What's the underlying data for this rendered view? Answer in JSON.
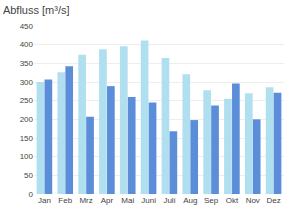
{
  "chart_data": {
    "type": "bar",
    "title": "Abfluss [m³/s]",
    "categories": [
      "Jan",
      "Feb",
      "Mrz",
      "Apr",
      "Mai",
      "Juni",
      "Juli",
      "Aug",
      "Sep",
      "Okt",
      "Nov",
      "Dez"
    ],
    "series": [
      {
        "color": "#b0dff0",
        "values": [
          300,
          326,
          373,
          388,
          396,
          411,
          364,
          321,
          278,
          255,
          270,
          286
        ]
      },
      {
        "color": "#5b8dd9",
        "values": [
          307,
          342,
          207,
          289,
          260,
          245,
          168,
          198,
          237,
          296,
          200,
          271
        ]
      }
    ],
    "ylim": [
      0,
      450
    ],
    "yticks": [
      0,
      50,
      100,
      150,
      200,
      250,
      300,
      350,
      400,
      450
    ],
    "grid": true
  }
}
